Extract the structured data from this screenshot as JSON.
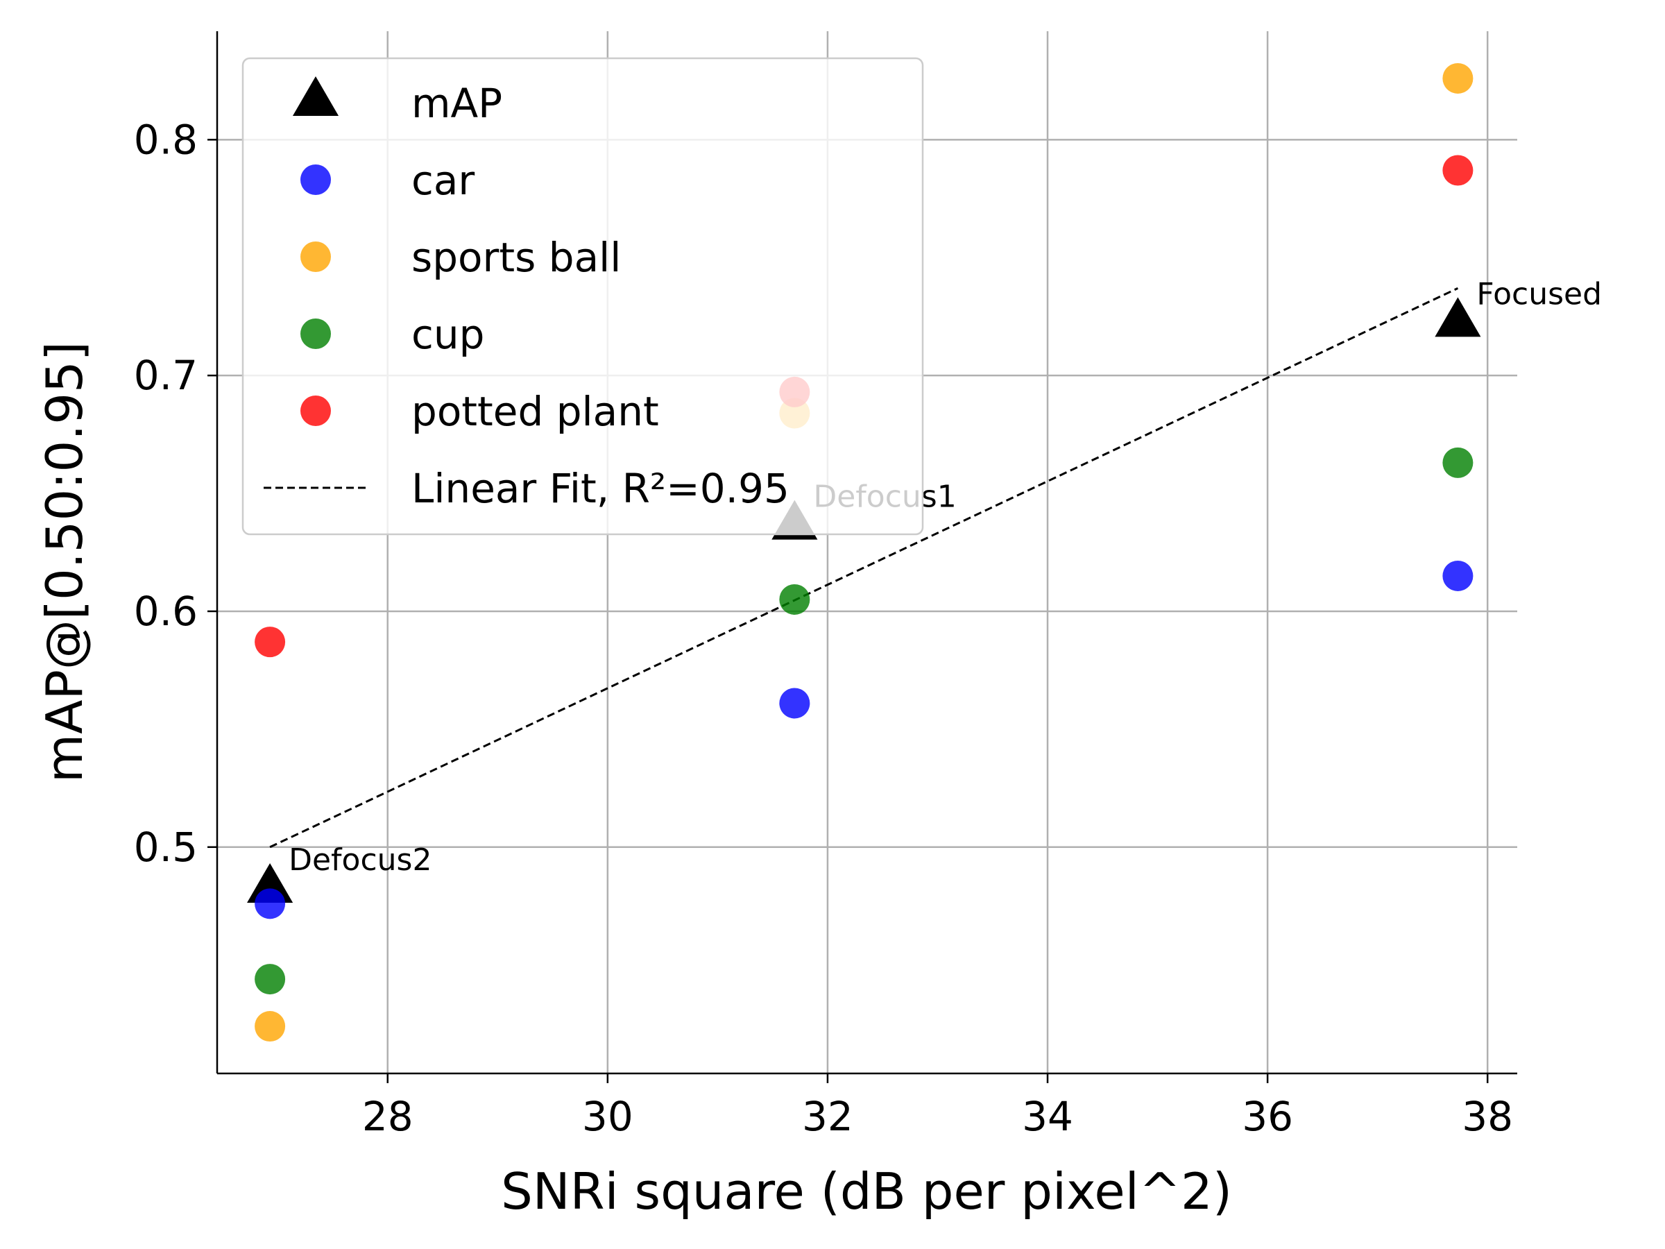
{
  "chart_data": {
    "type": "scatter",
    "title": "",
    "xlabel": "SNRi square (dB per pixel^2)",
    "ylabel": "mAP@[0.50:0.95]",
    "xlim": [
      26.45,
      38.27
    ],
    "ylim": [
      0.404,
      0.846
    ],
    "xticks": [
      28,
      30,
      32,
      34,
      36,
      38
    ],
    "yticks": [
      0.5,
      0.6,
      0.7,
      0.8
    ],
    "xtick_labels": [
      "28",
      "30",
      "32",
      "34",
      "36",
      "38"
    ],
    "ytick_labels": [
      "0.5",
      "0.6",
      "0.7",
      "0.8"
    ],
    "grid": true,
    "legend_position": "top-left",
    "series": [
      {
        "name": "mAP",
        "marker": "triangle",
        "color": "#000000",
        "x": [
          26.93,
          31.7,
          37.73
        ],
        "y": [
          0.482,
          0.636,
          0.722
        ]
      },
      {
        "name": "car",
        "marker": "circle",
        "color": "#0000ff",
        "x": [
          26.93,
          31.7,
          37.73
        ],
        "y": [
          0.476,
          0.561,
          0.615
        ]
      },
      {
        "name": "sports ball",
        "marker": "circle",
        "color": "#ffa500",
        "x": [
          26.93,
          31.7,
          37.73
        ],
        "y": [
          0.424,
          0.684,
          0.826
        ]
      },
      {
        "name": "cup",
        "marker": "circle",
        "color": "#008000",
        "x": [
          26.93,
          31.7,
          37.73
        ],
        "y": [
          0.444,
          0.605,
          0.663
        ]
      },
      {
        "name": "potted plant",
        "marker": "circle",
        "color": "#ff0000",
        "x": [
          26.93,
          31.7,
          37.73
        ],
        "y": [
          0.587,
          0.693,
          0.787
        ]
      }
    ],
    "fit_line": {
      "name": "Linear Fit, R²=0.95",
      "style": "dashed",
      "color": "#000000",
      "x": [
        26.93,
        37.73
      ],
      "y": [
        0.5,
        0.737
      ]
    },
    "annotations": [
      {
        "text": "Defocus2",
        "x": 26.93,
        "y": 0.482
      },
      {
        "text": "Defocus1",
        "x": 31.7,
        "y": 0.636
      },
      {
        "text": "Focused",
        "x": 37.73,
        "y": 0.722
      }
    ]
  }
}
